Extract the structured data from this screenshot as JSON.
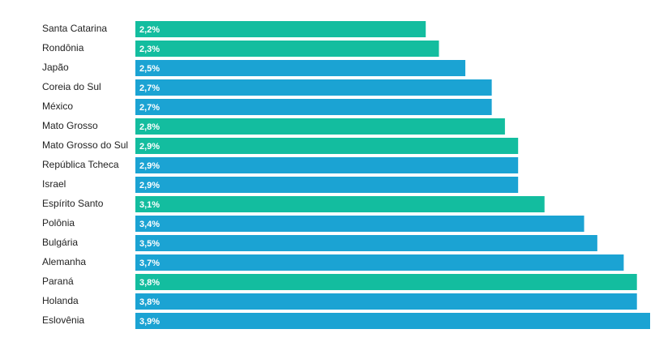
{
  "chart_data": {
    "type": "bar",
    "orientation": "horizontal",
    "categories": [
      "Santa Catarina",
      "Rondônia",
      "Japão",
      "Coreia do Sul",
      "México",
      "Mato Grosso",
      "Mato Grosso do Sul",
      "República Tcheca",
      "Israel",
      "Espírito Santo",
      "Polônia",
      "Bulgária",
      "Alemanha",
      "Paraná",
      "Holanda",
      "Eslovênia"
    ],
    "values": [
      2.2,
      2.3,
      2.5,
      2.7,
      2.7,
      2.8,
      2.9,
      2.9,
      2.9,
      3.1,
      3.4,
      3.5,
      3.7,
      3.8,
      3.8,
      3.9
    ],
    "value_labels": [
      "2,2%",
      "2,3%",
      "2,5%",
      "2,7%",
      "2,7%",
      "2,8%",
      "2,9%",
      "2,9%",
      "2,9%",
      "3,1%",
      "3,4%",
      "3,5%",
      "3,7%",
      "3,8%",
      "3,8%",
      "3,9%"
    ],
    "colors": [
      "#13bd9f",
      "#13bd9f",
      "#1ba3d3",
      "#1ba3d3",
      "#1ba3d3",
      "#13bd9f",
      "#13bd9f",
      "#1ba3d3",
      "#1ba3d3",
      "#13bd9f",
      "#1ba3d3",
      "#1ba3d3",
      "#1ba3d3",
      "#13bd9f",
      "#1ba3d3",
      "#1ba3d3"
    ]
  }
}
